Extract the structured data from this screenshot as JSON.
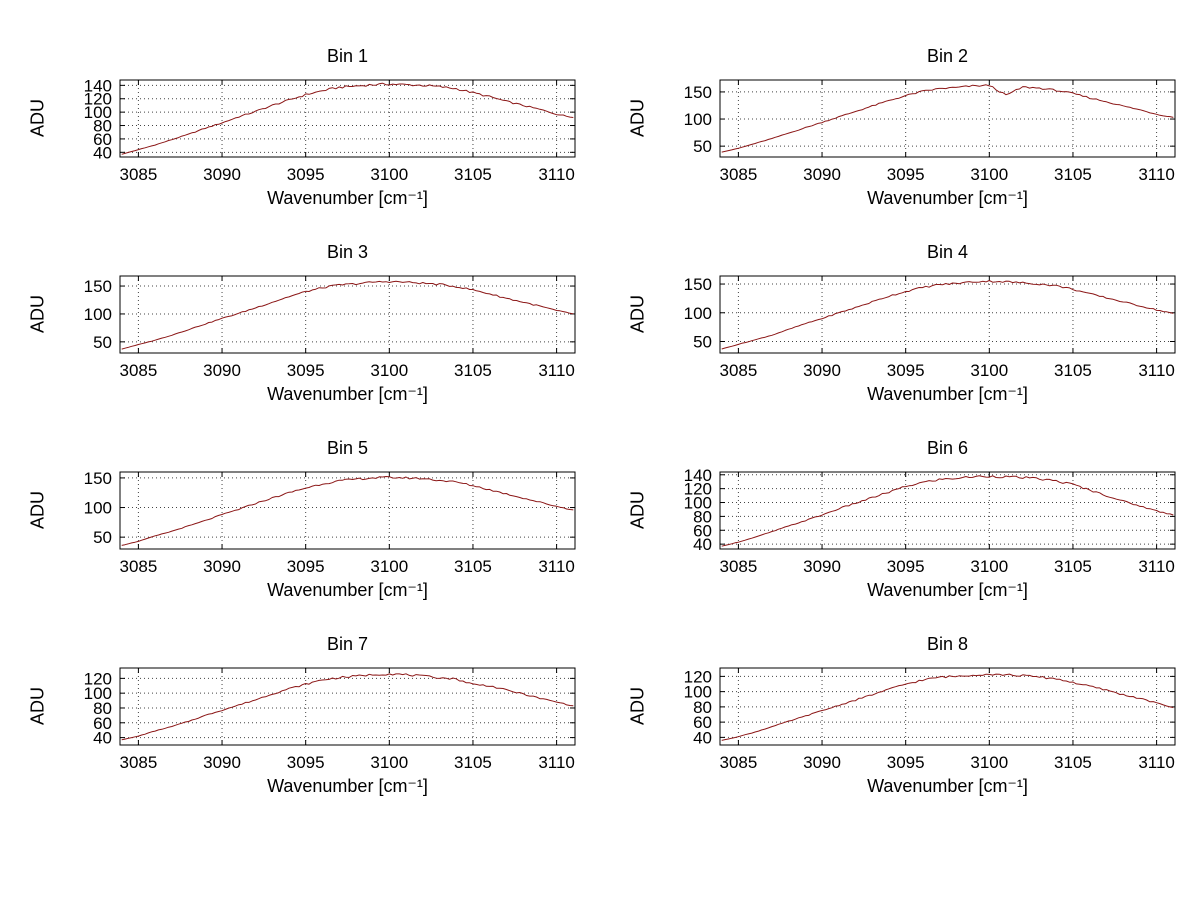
{
  "figure": {
    "background": "#ffffff",
    "line_color": "#8b1616",
    "grid_color": "#444444",
    "axis_color": "#000000"
  },
  "chart_data": [
    {
      "type": "line",
      "title": "Bin 1",
      "xlabel": "Wavenumber [cm⁻¹]",
      "ylabel": "ADU",
      "xlim": [
        3083.9,
        3111.1
      ],
      "ylim": [
        33,
        148
      ],
      "xticks": [
        3085,
        3090,
        3095,
        3100,
        3105,
        3110
      ],
      "yticks": [
        40,
        60,
        80,
        100,
        120,
        140
      ],
      "x_start": 3084,
      "x_step": 1,
      "noise": 1.8,
      "seed": 1,
      "values": [
        37,
        44,
        51,
        59,
        67,
        76,
        84,
        93,
        101,
        110,
        118,
        126,
        132,
        137,
        139,
        141,
        142,
        141,
        140,
        138,
        135,
        129,
        123,
        116,
        110,
        104,
        97,
        92
      ]
    },
    {
      "type": "line",
      "title": "Bin 2",
      "xlabel": "Wavenumber [cm⁻¹]",
      "ylabel": "ADU",
      "xlim": [
        3083.9,
        3111.1
      ],
      "ylim": [
        30,
        172
      ],
      "xticks": [
        3085,
        3090,
        3095,
        3100,
        3105,
        3110
      ],
      "yticks": [
        50,
        100,
        150
      ],
      "x_start": 3084,
      "x_step": 1,
      "noise": 1.8,
      "seed": 2,
      "values": [
        39,
        46,
        55,
        64,
        74,
        84,
        94,
        104,
        114,
        124,
        134,
        143,
        151,
        156,
        158,
        161,
        162,
        144,
        159,
        157,
        153,
        147,
        139,
        132,
        124,
        117,
        109,
        103
      ]
    },
    {
      "type": "line",
      "title": "Bin 3",
      "xlabel": "Wavenumber [cm⁻¹]",
      "ylabel": "ADU",
      "xlim": [
        3083.9,
        3111.1
      ],
      "ylim": [
        30,
        168
      ],
      "xticks": [
        3085,
        3090,
        3095,
        3100,
        3105,
        3110
      ],
      "yticks": [
        50,
        100,
        150
      ],
      "x_start": 3084,
      "x_step": 1,
      "noise": 1.8,
      "seed": 3,
      "values": [
        37,
        45,
        53,
        62,
        72,
        82,
        92,
        101,
        111,
        121,
        131,
        140,
        147,
        152,
        154,
        157,
        158,
        157,
        155,
        153,
        149,
        143,
        136,
        128,
        121,
        114,
        106,
        100
      ]
    },
    {
      "type": "line",
      "title": "Bin 4",
      "xlabel": "Wavenumber [cm⁻¹]",
      "ylabel": "ADU",
      "xlim": [
        3083.9,
        3111.1
      ],
      "ylim": [
        30,
        164
      ],
      "xticks": [
        3085,
        3090,
        3095,
        3100,
        3105,
        3110
      ],
      "yticks": [
        50,
        100,
        150
      ],
      "x_start": 3084,
      "x_step": 1,
      "noise": 1.8,
      "seed": 4,
      "values": [
        37,
        45,
        53,
        61,
        71,
        81,
        90,
        100,
        109,
        119,
        129,
        137,
        144,
        149,
        151,
        154,
        155,
        154,
        152,
        150,
        147,
        141,
        133,
        126,
        119,
        112,
        105,
        99
      ]
    },
    {
      "type": "line",
      "title": "Bin 5",
      "xlabel": "Wavenumber [cm⁻¹]",
      "ylabel": "ADU",
      "xlim": [
        3083.9,
        3111.1
      ],
      "ylim": [
        30,
        160
      ],
      "xticks": [
        3085,
        3090,
        3095,
        3100,
        3105,
        3110
      ],
      "yticks": [
        50,
        100,
        150
      ],
      "x_start": 3084,
      "x_step": 1,
      "noise": 1.8,
      "seed": 5,
      "values": [
        36,
        43,
        52,
        60,
        69,
        78,
        88,
        97,
        107,
        116,
        125,
        133,
        140,
        145,
        148,
        150,
        151,
        150,
        149,
        146,
        143,
        137,
        130,
        123,
        116,
        109,
        102,
        96
      ]
    },
    {
      "type": "line",
      "title": "Bin 6",
      "xlabel": "Wavenumber [cm⁻¹]",
      "ylabel": "ADU",
      "xlim": [
        3083.9,
        3111.1
      ],
      "ylim": [
        33,
        144
      ],
      "xticks": [
        3085,
        3090,
        3095,
        3100,
        3105,
        3110
      ],
      "yticks": [
        40,
        60,
        80,
        100,
        120,
        140
      ],
      "x_start": 3084,
      "x_step": 1,
      "noise": 1.8,
      "seed": 6,
      "values": [
        37,
        43,
        50,
        58,
        66,
        74,
        82,
        91,
        99,
        107,
        115,
        123,
        129,
        133,
        135,
        137,
        138,
        137,
        136,
        134,
        131,
        126,
        118,
        110,
        102,
        95,
        88,
        82
      ]
    },
    {
      "type": "line",
      "title": "Bin 7",
      "xlabel": "Wavenumber [cm⁻¹]",
      "ylabel": "ADU",
      "xlim": [
        3083.9,
        3111.1
      ],
      "ylim": [
        30,
        134
      ],
      "xticks": [
        3085,
        3090,
        3095,
        3100,
        3105,
        3110
      ],
      "yticks": [
        40,
        60,
        80,
        100,
        120
      ],
      "x_start": 3084,
      "x_step": 1,
      "noise": 1.5,
      "seed": 7,
      "values": [
        37,
        42,
        49,
        55,
        62,
        70,
        77,
        84,
        91,
        99,
        106,
        112,
        118,
        121,
        123,
        125,
        126,
        125,
        123,
        121,
        119,
        112,
        110,
        104,
        99,
        93,
        88,
        83
      ]
    },
    {
      "type": "line",
      "title": "Bin 8",
      "xlabel": "Wavenumber [cm⁻¹]",
      "ylabel": "ADU",
      "xlim": [
        3083.9,
        3111.1
      ],
      "ylim": [
        30,
        131
      ],
      "xticks": [
        3085,
        3090,
        3095,
        3100,
        3105,
        3110
      ],
      "yticks": [
        40,
        60,
        80,
        100,
        120
      ],
      "x_start": 3084,
      "x_step": 1,
      "noise": 1.5,
      "seed": 8,
      "values": [
        36,
        41,
        47,
        54,
        61,
        68,
        75,
        82,
        89,
        96,
        103,
        110,
        115,
        119,
        120,
        122,
        123,
        122,
        121,
        119,
        117,
        112,
        107,
        102,
        96,
        91,
        85,
        79
      ]
    }
  ]
}
